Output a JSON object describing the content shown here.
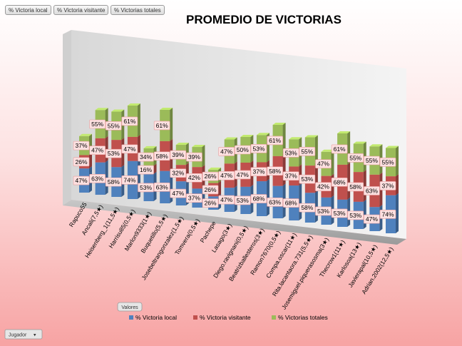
{
  "field_buttons": [
    "% Victoria local",
    "% Victoria visitante",
    "% Victorias totales"
  ],
  "values_button": "Valores",
  "filter_button": "Jugador",
  "filter_arrow": "▾",
  "colors": {
    "local": "#4f81bd",
    "visitante": "#c0504d",
    "totales": "#9bbb59",
    "label_bg": "#fde0e0",
    "label_border": "#e8a0a0"
  },
  "chart_data": {
    "type": "bar",
    "subtype": "3d-stacked-column",
    "title": "PROMEDIO DE VICTORIAS",
    "legend_position": "bottom",
    "categories": [
      "Rapuco55",
      "Ancali(7,5★)",
      "Heisenberg_1(11,5★)",
      "Harrisu85(0,5★)",
      "Marlon9333(1★)",
      "Buquetillo(5,5★)",
      "Josebeltrangonzalez(1,5★)",
      "Tomvera(0,5★)",
      "Pachepe",
      "Lasago(3★)",
      "Diego.ravignani(0,5★)",
      "Beatrizballesteros(3★)",
      "Ramon7670(0,5★)",
      "Compa.oscar(11★)",
      "Rita.lacantaora.731(5,5★)",
      "Josemiguel.piquerasosma(3★)",
      "Thecrow1(11★)",
      "Karlosoa(13★)",
      "Javierapal(10,5★)",
      "Adrian.2002(12,5★)"
    ],
    "series": [
      {
        "name": "% Victoria local",
        "values": [
          47,
          63,
          58,
          74,
          53,
          63,
          47,
          37,
          26,
          47,
          53,
          68,
          63,
          68,
          58,
          53,
          53,
          53,
          47,
          74
        ]
      },
      {
        "name": "% Victoria visitante",
        "values": [
          26,
          47,
          53,
          47,
          16,
          58,
          32,
          42,
          26,
          47,
          47,
          37,
          58,
          37,
          53,
          42,
          68,
          58,
          63,
          37
        ]
      },
      {
        "name": "% Victorias totales",
        "values": [
          37,
          55,
          55,
          61,
          34,
          61,
          39,
          39,
          26,
          47,
          50,
          53,
          61,
          53,
          55,
          47,
          61,
          55,
          55,
          55
        ]
      }
    ],
    "data_labels": [
      "47%",
      "63%",
      "58%",
      "74%",
      "53%",
      "63%",
      "47%",
      "37%",
      "26%",
      "47%",
      "53%",
      "68%",
      "63%",
      "68%",
      "58%",
      "53%",
      "53%",
      "53%",
      "47%",
      "74%",
      "26%",
      "47%",
      "53%",
      "47%",
      "16%",
      "58%",
      "32%",
      "42%",
      "26%",
      "47%",
      "47%",
      "37%",
      "58%",
      "37%",
      "53%",
      "42%",
      "68%",
      "58%",
      "63%",
      "37%",
      "37%",
      "55%",
      "55%",
      "61%",
      "34%",
      "61%",
      "39%",
      "39%",
      "26%",
      "47%",
      "50%",
      "53%",
      "61%",
      "53%",
      "55%",
      "47%",
      "61%",
      "55%",
      "55%",
      "55%"
    ],
    "grid": false
  }
}
